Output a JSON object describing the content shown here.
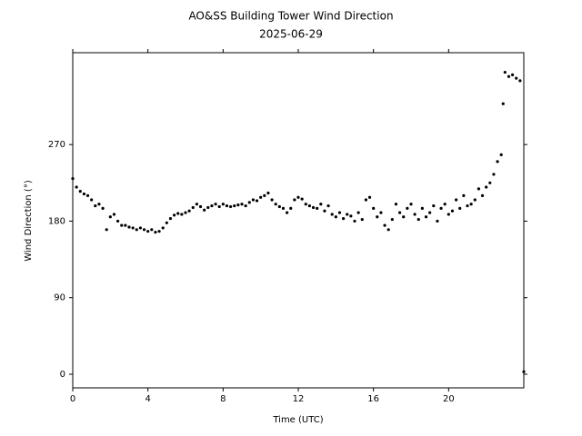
{
  "chart_data": {
    "type": "scatter",
    "title": "AO&SS Building Tower Wind Direction",
    "subtitle": "2025-06-29",
    "xlabel": "Time (UTC)",
    "ylabel": "Wind Direction (°)",
    "color": "#000000",
    "xlim": [
      0,
      24
    ],
    "xticks": [
      0,
      4,
      8,
      12,
      16,
      20
    ],
    "ylim": [
      -16,
      378
    ],
    "yticks": [
      0,
      90,
      180,
      270
    ],
    "x": [
      0,
      0.2,
      0.4,
      0.6,
      0.8,
      1.0,
      1.2,
      1.4,
      1.6,
      1.8,
      2.0,
      2.2,
      2.4,
      2.6,
      2.8,
      3.0,
      3.2,
      3.4,
      3.6,
      3.8,
      4.0,
      4.2,
      4.4,
      4.6,
      4.8,
      5.0,
      5.2,
      5.4,
      5.6,
      5.8,
      6.0,
      6.2,
      6.4,
      6.6,
      6.8,
      7.0,
      7.2,
      7.4,
      7.6,
      7.8,
      8.0,
      8.2,
      8.4,
      8.6,
      8.8,
      9.0,
      9.2,
      9.4,
      9.6,
      9.8,
      10.0,
      10.2,
      10.4,
      10.6,
      10.8,
      11.0,
      11.2,
      11.4,
      11.6,
      11.8,
      12.0,
      12.2,
      12.4,
      12.6,
      12.8,
      13.0,
      13.2,
      13.4,
      13.6,
      13.8,
      14.0,
      14.2,
      14.4,
      14.6,
      14.8,
      15.0,
      15.2,
      15.4,
      15.6,
      15.8,
      16.0,
      16.2,
      16.4,
      16.6,
      16.8,
      17.0,
      17.2,
      17.4,
      17.6,
      17.8,
      18.0,
      18.2,
      18.4,
      18.6,
      18.8,
      19.0,
      19.2,
      19.4,
      19.6,
      19.8,
      20.0,
      20.2,
      20.4,
      20.6,
      20.8,
      21.0,
      21.2,
      21.4,
      21.6,
      21.8,
      22.0,
      22.2,
      22.4,
      22.6,
      22.8,
      22.9,
      23.0,
      23.2,
      23.4,
      23.6,
      23.8,
      24.0
    ],
    "values": [
      230,
      220,
      215,
      212,
      210,
      205,
      198,
      200,
      195,
      170,
      185,
      188,
      180,
      175,
      175,
      173,
      172,
      170,
      172,
      170,
      168,
      170,
      167,
      168,
      172,
      178,
      183,
      187,
      189,
      188,
      190,
      192,
      196,
      200,
      197,
      193,
      196,
      198,
      200,
      197,
      200,
      198,
      197,
      198,
      199,
      200,
      198,
      202,
      205,
      204,
      208,
      210,
      213,
      205,
      200,
      197,
      195,
      190,
      195,
      205,
      208,
      206,
      200,
      198,
      196,
      195,
      200,
      192,
      198,
      188,
      185,
      190,
      183,
      188,
      186,
      180,
      190,
      182,
      205,
      208,
      195,
      185,
      190,
      175,
      170,
      182,
      200,
      190,
      185,
      195,
      200,
      188,
      182,
      195,
      185,
      190,
      198,
      180,
      195,
      200,
      188,
      192,
      205,
      195,
      210,
      198,
      200,
      205,
      218,
      210,
      220,
      225,
      235,
      250,
      258,
      318,
      355,
      350,
      352,
      348,
      345,
      3
    ]
  }
}
